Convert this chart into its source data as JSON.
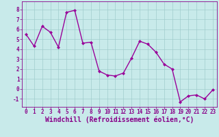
{
  "x": [
    0,
    1,
    2,
    3,
    4,
    5,
    6,
    7,
    8,
    9,
    10,
    11,
    12,
    13,
    14,
    15,
    16,
    17,
    18,
    19,
    20,
    21,
    22,
    23
  ],
  "y": [
    5.5,
    4.3,
    6.3,
    5.7,
    4.2,
    7.7,
    7.9,
    4.6,
    4.7,
    1.8,
    1.4,
    1.3,
    1.6,
    3.1,
    4.8,
    4.5,
    3.7,
    2.5,
    2.0,
    -1.3,
    -0.7,
    -0.6,
    -1.0,
    -0.1
  ],
  "line_color": "#990099",
  "marker": "D",
  "markersize": 2.0,
  "linewidth": 1.0,
  "bg_color": "#c8eaea",
  "grid_color": "#a0cccc",
  "xlabel": "Windchill (Refroidissement éolien,°C)",
  "xlim": [
    -0.5,
    23.5
  ],
  "ylim": [
    -1.8,
    8.8
  ],
  "yticks": [
    -1,
    0,
    1,
    2,
    3,
    4,
    5,
    6,
    7,
    8
  ],
  "xticks": [
    0,
    1,
    2,
    3,
    4,
    5,
    6,
    7,
    8,
    9,
    10,
    11,
    12,
    13,
    14,
    15,
    16,
    17,
    18,
    19,
    20,
    21,
    22,
    23
  ],
  "tick_labelsize": 5.5,
  "xlabel_fontsize": 7.0,
  "xlabel_color": "#880088",
  "tick_color": "#880088",
  "spine_color": "#880088"
}
